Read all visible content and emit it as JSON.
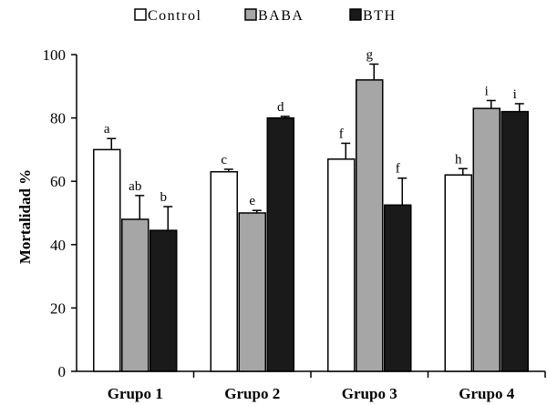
{
  "chart_data": {
    "type": "bar",
    "title": "",
    "xlabel": "",
    "ylabel": "Mortalidad %",
    "ylim": [
      0,
      100
    ],
    "yticks": [
      0,
      20,
      40,
      60,
      80,
      100
    ],
    "grid": false,
    "legend_position": "top",
    "categories": [
      "Grupo 1",
      "Grupo 2",
      "Grupo 3",
      "Grupo 4"
    ],
    "series": [
      {
        "name": "Control",
        "color": "#ffffff",
        "values": [
          70,
          63,
          67,
          62
        ],
        "errors": [
          3.5,
          0.8,
          5,
          2
        ],
        "labels": [
          "a",
          "c",
          "f",
          "h"
        ]
      },
      {
        "name": "BABA",
        "color": "#a6a6a6",
        "values": [
          48,
          50,
          92,
          83
        ],
        "errors": [
          7.5,
          0.8,
          5,
          2.5
        ],
        "labels": [
          "ab",
          "e",
          "g",
          "i"
        ]
      },
      {
        "name": "BTH",
        "color": "#1a1a1a",
        "values": [
          44.5,
          80,
          52.5,
          82
        ],
        "errors": [
          7.5,
          0.5,
          8.5,
          2.5
        ],
        "labels": [
          "b",
          "d",
          "f",
          "i"
        ]
      }
    ]
  }
}
